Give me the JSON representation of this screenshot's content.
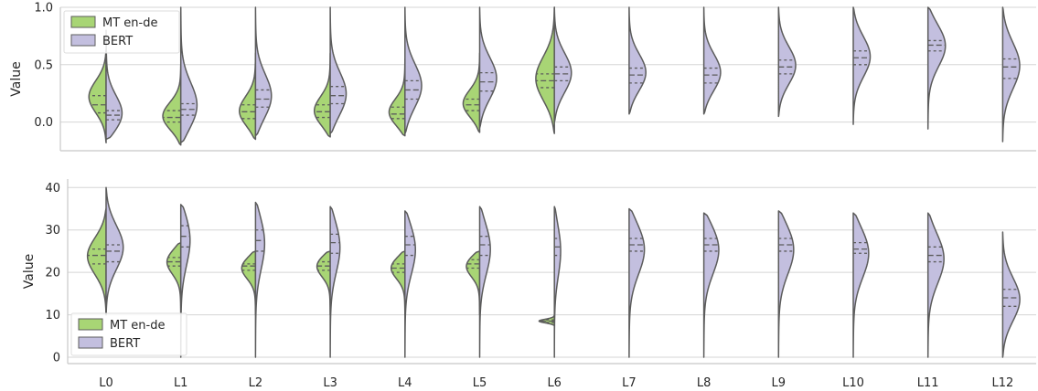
{
  "colors": {
    "mt": "#a8d575",
    "bert": "#c3bfdf",
    "outline": "#5c5c5c",
    "grid": "#d5d5d5",
    "axis": "#c8c8c8",
    "legend_border": "#dddddd"
  },
  "chart_data": [
    {
      "type": "violin",
      "split": true,
      "inner": "quartile",
      "ylabel": "Value",
      "ylim": [
        -0.25,
        1.0
      ],
      "yticks": [
        0.0,
        0.5,
        1.0
      ],
      "ytick_labels": [
        "0.0",
        "0.5",
        "1.0"
      ],
      "grid": true,
      "legend_position": "upper-left",
      "legend": [
        "MT en-de",
        "BERT"
      ],
      "categories": [
        "L0",
        "L1",
        "L2",
        "L3",
        "L4",
        "L5",
        "L6",
        "L7",
        "L8",
        "L9",
        "L10",
        "L11",
        "L12"
      ],
      "series": [
        {
          "name": "MT en-de",
          "violins": [
            {
              "cat": "L0",
              "min": -0.18,
              "max": 0.63,
              "q1": 0.08,
              "median": 0.15,
              "q3": 0.23,
              "mode": 0.22,
              "width": 0.55
            },
            {
              "cat": "L1",
              "min": -0.2,
              "max": 0.5,
              "q1": 0.0,
              "median": 0.04,
              "q3": 0.1,
              "mode": 0.04,
              "width": 0.6
            },
            {
              "cat": "L2",
              "min": -0.15,
              "max": 0.6,
              "q1": 0.03,
              "median": 0.09,
              "q3": 0.15,
              "mode": 0.08,
              "width": 0.55
            },
            {
              "cat": "L3",
              "min": -0.13,
              "max": 0.6,
              "q1": 0.04,
              "median": 0.09,
              "q3": 0.15,
              "mode": 0.08,
              "width": 0.55
            },
            {
              "cat": "L4",
              "min": -0.12,
              "max": 0.55,
              "q1": 0.03,
              "median": 0.07,
              "q3": 0.13,
              "mode": 0.07,
              "width": 0.55
            },
            {
              "cat": "L5",
              "min": -0.09,
              "max": 0.6,
              "q1": 0.1,
              "median": 0.15,
              "q3": 0.2,
              "mode": 0.15,
              "width": 0.55
            },
            {
              "cat": "L6",
              "min": -0.1,
              "max": 1.0,
              "q1": 0.3,
              "median": 0.36,
              "q3": 0.42,
              "mode": 0.37,
              "width": 0.6
            }
          ]
        },
        {
          "name": "BERT",
          "violins": [
            {
              "cat": "L0",
              "min": -0.15,
              "max": 0.8,
              "q1": 0.02,
              "median": 0.06,
              "q3": 0.1,
              "mode": 0.04,
              "width": 0.6
            },
            {
              "cat": "L1",
              "min": -0.18,
              "max": 1.0,
              "q1": 0.06,
              "median": 0.11,
              "q3": 0.16,
              "mode": 0.11,
              "width": 0.58
            },
            {
              "cat": "L2",
              "min": -0.12,
              "max": 1.0,
              "q1": 0.13,
              "median": 0.2,
              "q3": 0.28,
              "mode": 0.2,
              "width": 0.55
            },
            {
              "cat": "L3",
              "min": -0.1,
              "max": 1.0,
              "q1": 0.16,
              "median": 0.23,
              "q3": 0.31,
              "mode": 0.22,
              "width": 0.55
            },
            {
              "cat": "L4",
              "min": -0.1,
              "max": 1.0,
              "q1": 0.2,
              "median": 0.28,
              "q3": 0.36,
              "mode": 0.3,
              "width": 0.55
            },
            {
              "cat": "L5",
              "min": -0.05,
              "max": 1.0,
              "q1": 0.27,
              "median": 0.35,
              "q3": 0.43,
              "mode": 0.37,
              "width": 0.55
            },
            {
              "cat": "L6",
              "min": 0.0,
              "max": 1.0,
              "q1": 0.36,
              "median": 0.42,
              "q3": 0.48,
              "mode": 0.42,
              "width": 0.55
            },
            {
              "cat": "L7",
              "min": 0.07,
              "max": 1.0,
              "q1": 0.34,
              "median": 0.41,
              "q3": 0.47,
              "mode": 0.42,
              "width": 0.55
            },
            {
              "cat": "L8",
              "min": 0.07,
              "max": 1.0,
              "q1": 0.34,
              "median": 0.41,
              "q3": 0.47,
              "mode": 0.42,
              "width": 0.55
            },
            {
              "cat": "L9",
              "min": 0.05,
              "max": 1.0,
              "q1": 0.42,
              "median": 0.48,
              "q3": 0.54,
              "mode": 0.49,
              "width": 0.55
            },
            {
              "cat": "L10",
              "min": -0.02,
              "max": 1.0,
              "q1": 0.5,
              "median": 0.56,
              "q3": 0.62,
              "mode": 0.58,
              "width": 0.55
            },
            {
              "cat": "L11",
              "min": -0.06,
              "max": 1.0,
              "q1": 0.62,
              "median": 0.67,
              "q3": 0.71,
              "mode": 0.69,
              "width": 0.6
            },
            {
              "cat": "L12",
              "min": -0.17,
              "max": 1.0,
              "q1": 0.38,
              "median": 0.48,
              "q3": 0.55,
              "mode": 0.5,
              "width": 0.55
            }
          ]
        }
      ]
    },
    {
      "type": "violin",
      "split": true,
      "inner": "quartile",
      "ylabel": "Value",
      "ylim": [
        -1.5,
        42
      ],
      "yticks": [
        0,
        10,
        20,
        30,
        40
      ],
      "ytick_labels": [
        "0",
        "10",
        "20",
        "30",
        "40"
      ],
      "grid": true,
      "legend_position": "lower-left",
      "legend": [
        "MT en-de",
        "BERT"
      ],
      "categories": [
        "L0",
        "L1",
        "L2",
        "L3",
        "L4",
        "L5",
        "L6",
        "L7",
        "L8",
        "L9",
        "L10",
        "L11",
        "L12"
      ],
      "series": [
        {
          "name": "MT en-de",
          "violins": [
            {
              "cat": "L0",
              "min": 10,
              "max": 35,
              "q1": 22,
              "median": 24,
              "q3": 25.5,
              "mode": 24,
              "width": 0.6
            },
            {
              "cat": "L1",
              "min": 10,
              "max": 27,
              "q1": 21.5,
              "median": 22.5,
              "q3": 23.5,
              "mode": 23,
              "width": 0.5
            },
            {
              "cat": "L2",
              "min": 10,
              "max": 25,
              "q1": 20.5,
              "median": 21.5,
              "q3": 22,
              "mode": 21.5,
              "width": 0.5
            },
            {
              "cat": "L3",
              "min": 10,
              "max": 25,
              "q1": 20.5,
              "median": 21.5,
              "q3": 22.5,
              "mode": 22,
              "width": 0.5
            },
            {
              "cat": "L4",
              "min": 10,
              "max": 25,
              "q1": 20,
              "median": 21,
              "q3": 22,
              "mode": 21.5,
              "width": 0.5
            },
            {
              "cat": "L5",
              "min": 10,
              "max": 25,
              "q1": 21,
              "median": 22,
              "q3": 23,
              "mode": 22,
              "width": 0.5
            },
            {
              "cat": "L6",
              "min": 7.5,
              "max": 10,
              "q1": 8.2,
              "median": 8.5,
              "q3": 8.8,
              "mode": 8.5,
              "width": 0.5
            }
          ]
        },
        {
          "name": "BERT",
          "violins": [
            {
              "cat": "L0",
              "min": 10,
              "max": 40,
              "q1": 22.5,
              "median": 25,
              "q3": 26.5,
              "mode": 26,
              "width": 0.55
            },
            {
              "cat": "L1",
              "min": 0,
              "max": 36,
              "q1": 26,
              "median": 28.5,
              "q3": 31,
              "mode": 29,
              "width": 0.35
            },
            {
              "cat": "L2",
              "min": 0,
              "max": 36.5,
              "q1": 25,
              "median": 27.5,
              "q3": 30,
              "mode": 28,
              "width": 0.33
            },
            {
              "cat": "L3",
              "min": 0,
              "max": 35.5,
              "q1": 24.5,
              "median": 27,
              "q3": 29,
              "mode": 27,
              "width": 0.35
            },
            {
              "cat": "L4",
              "min": 0,
              "max": 34.5,
              "q1": 24,
              "median": 26.5,
              "q3": 28.5,
              "mode": 26.5,
              "width": 0.38
            },
            {
              "cat": "L5",
              "min": 0,
              "max": 35.5,
              "q1": 24,
              "median": 26.5,
              "q3": 28.5,
              "mode": 26.5,
              "width": 0.38
            },
            {
              "cat": "L6",
              "min": 0,
              "max": 35.5,
              "q1": 24,
              "median": 26,
              "q3": 28,
              "mode": 26,
              "width": 0.22
            },
            {
              "cat": "L7",
              "min": 0,
              "max": 35,
              "q1": 25,
              "median": 26.5,
              "q3": 28,
              "mode": 26.5,
              "width": 0.55
            },
            {
              "cat": "L8",
              "min": 0,
              "max": 34,
              "q1": 25,
              "median": 26.5,
              "q3": 28,
              "mode": 26.5,
              "width": 0.55
            },
            {
              "cat": "L9",
              "min": 0,
              "max": 34.5,
              "q1": 25,
              "median": 26.5,
              "q3": 28,
              "mode": 26.5,
              "width": 0.55
            },
            {
              "cat": "L10",
              "min": 0,
              "max": 34,
              "q1": 24.5,
              "median": 25.5,
              "q3": 27,
              "mode": 25.5,
              "width": 0.55
            },
            {
              "cat": "L11",
              "min": 0,
              "max": 34,
              "q1": 22.5,
              "median": 24,
              "q3": 26,
              "mode": 24,
              "width": 0.55
            },
            {
              "cat": "L12",
              "min": 0,
              "max": 29.5,
              "q1": 12,
              "median": 14,
              "q3": 16,
              "mode": 13.5,
              "width": 0.55
            }
          ]
        }
      ]
    }
  ]
}
